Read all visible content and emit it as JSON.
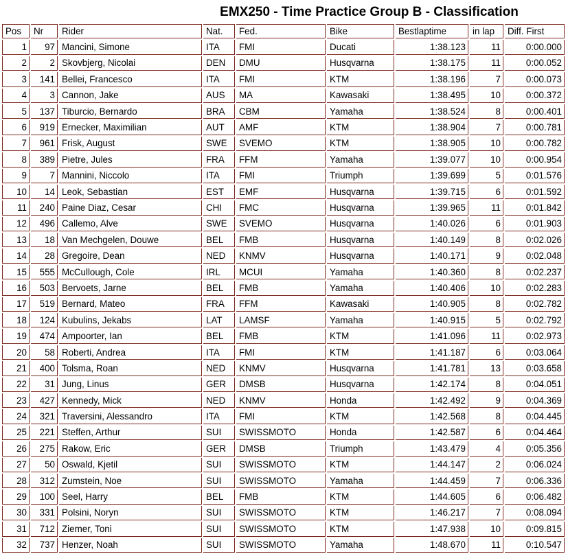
{
  "title": "EMX250 - Time Practice Group B - Classification",
  "table": {
    "columns": [
      "Pos",
      "Nr",
      "Rider",
      "Nat.",
      "Fed.",
      "Bike",
      "Bestlaptime",
      "in lap",
      "Diff. First"
    ],
    "rows": [
      {
        "pos": "1",
        "nr": "97",
        "rider": "Mancini, Simone",
        "nat": "ITA",
        "fed": "FMI",
        "bike": "Ducati",
        "bestlaptime": "1:38.123",
        "in_lap": "11",
        "diff_first": "0:00.000"
      },
      {
        "pos": "2",
        "nr": "2",
        "rider": "Skovbjerg, Nicolai",
        "nat": "DEN",
        "fed": "DMU",
        "bike": "Husqvarna",
        "bestlaptime": "1:38.175",
        "in_lap": "11",
        "diff_first": "0:00.052"
      },
      {
        "pos": "3",
        "nr": "141",
        "rider": "Bellei, Francesco",
        "nat": "ITA",
        "fed": "FMI",
        "bike": "KTM",
        "bestlaptime": "1:38.196",
        "in_lap": "7",
        "diff_first": "0:00.073"
      },
      {
        "pos": "4",
        "nr": "3",
        "rider": "Cannon, Jake",
        "nat": "AUS",
        "fed": "MA",
        "bike": "Kawasaki",
        "bestlaptime": "1:38.495",
        "in_lap": "10",
        "diff_first": "0:00.372"
      },
      {
        "pos": "5",
        "nr": "137",
        "rider": "Tiburcio, Bernardo",
        "nat": "BRA",
        "fed": "CBM",
        "bike": "Yamaha",
        "bestlaptime": "1:38.524",
        "in_lap": "8",
        "diff_first": "0:00.401"
      },
      {
        "pos": "6",
        "nr": "919",
        "rider": "Ernecker, Maximilian",
        "nat": "AUT",
        "fed": "AMF",
        "bike": "KTM",
        "bestlaptime": "1:38.904",
        "in_lap": "7",
        "diff_first": "0:00.781"
      },
      {
        "pos": "7",
        "nr": "961",
        "rider": "Frisk, August",
        "nat": "SWE",
        "fed": "SVEMO",
        "bike": "KTM",
        "bestlaptime": "1:38.905",
        "in_lap": "10",
        "diff_first": "0:00.782"
      },
      {
        "pos": "8",
        "nr": "389",
        "rider": "Pietre, Jules",
        "nat": "FRA",
        "fed": "FFM",
        "bike": "Yamaha",
        "bestlaptime": "1:39.077",
        "in_lap": "10",
        "diff_first": "0:00.954"
      },
      {
        "pos": "9",
        "nr": "7",
        "rider": "Mannini, Niccolo",
        "nat": "ITA",
        "fed": "FMI",
        "bike": "Triumph",
        "bestlaptime": "1:39.699",
        "in_lap": "5",
        "diff_first": "0:01.576"
      },
      {
        "pos": "10",
        "nr": "14",
        "rider": "Leok, Sebastian",
        "nat": "EST",
        "fed": "EMF",
        "bike": "Husqvarna",
        "bestlaptime": "1:39.715",
        "in_lap": "6",
        "diff_first": "0:01.592"
      },
      {
        "pos": "11",
        "nr": "240",
        "rider": "Paine Diaz, Cesar",
        "nat": "CHI",
        "fed": "FMC",
        "bike": "Husqvarna",
        "bestlaptime": "1:39.965",
        "in_lap": "11",
        "diff_first": "0:01.842"
      },
      {
        "pos": "12",
        "nr": "496",
        "rider": "Callemo, Alve",
        "nat": "SWE",
        "fed": "SVEMO",
        "bike": "Husqvarna",
        "bestlaptime": "1:40.026",
        "in_lap": "6",
        "diff_first": "0:01.903"
      },
      {
        "pos": "13",
        "nr": "18",
        "rider": "Van Mechgelen, Douwe",
        "nat": "BEL",
        "fed": "FMB",
        "bike": "Husqvarna",
        "bestlaptime": "1:40.149",
        "in_lap": "8",
        "diff_first": "0:02.026"
      },
      {
        "pos": "14",
        "nr": "28",
        "rider": "Gregoire, Dean",
        "nat": "NED",
        "fed": "KNMV",
        "bike": "Husqvarna",
        "bestlaptime": "1:40.171",
        "in_lap": "9",
        "diff_first": "0:02.048"
      },
      {
        "pos": "15",
        "nr": "555",
        "rider": "McCullough, Cole",
        "nat": "IRL",
        "fed": "MCUI",
        "bike": "Yamaha",
        "bestlaptime": "1:40.360",
        "in_lap": "8",
        "diff_first": "0:02.237"
      },
      {
        "pos": "16",
        "nr": "503",
        "rider": "Bervoets, Jarne",
        "nat": "BEL",
        "fed": "FMB",
        "bike": "Yamaha",
        "bestlaptime": "1:40.406",
        "in_lap": "10",
        "diff_first": "0:02.283"
      },
      {
        "pos": "17",
        "nr": "519",
        "rider": "Bernard, Mateo",
        "nat": "FRA",
        "fed": "FFM",
        "bike": "Kawasaki",
        "bestlaptime": "1:40.905",
        "in_lap": "8",
        "diff_first": "0:02.782"
      },
      {
        "pos": "18",
        "nr": "124",
        "rider": "Kubulins, Jekabs",
        "nat": "LAT",
        "fed": "LAMSF",
        "bike": "Yamaha",
        "bestlaptime": "1:40.915",
        "in_lap": "5",
        "diff_first": "0:02.792"
      },
      {
        "pos": "19",
        "nr": "474",
        "rider": "Ampoorter, Ian",
        "nat": "BEL",
        "fed": "FMB",
        "bike": "KTM",
        "bestlaptime": "1:41.096",
        "in_lap": "11",
        "diff_first": "0:02.973"
      },
      {
        "pos": "20",
        "nr": "58",
        "rider": "Roberti, Andrea",
        "nat": "ITA",
        "fed": "FMI",
        "bike": "KTM",
        "bestlaptime": "1:41.187",
        "in_lap": "6",
        "diff_first": "0:03.064"
      },
      {
        "pos": "21",
        "nr": "400",
        "rider": "Tolsma, Roan",
        "nat": "NED",
        "fed": "KNMV",
        "bike": "Husqvarna",
        "bestlaptime": "1:41.781",
        "in_lap": "13",
        "diff_first": "0:03.658"
      },
      {
        "pos": "22",
        "nr": "31",
        "rider": "Jung, Linus",
        "nat": "GER",
        "fed": "DMSB",
        "bike": "Husqvarna",
        "bestlaptime": "1:42.174",
        "in_lap": "8",
        "diff_first": "0:04.051"
      },
      {
        "pos": "23",
        "nr": "427",
        "rider": "Kennedy, Mick",
        "nat": "NED",
        "fed": "KNMV",
        "bike": "Honda",
        "bestlaptime": "1:42.492",
        "in_lap": "9",
        "diff_first": "0:04.369"
      },
      {
        "pos": "24",
        "nr": "321",
        "rider": "Traversini, Alessandro",
        "nat": "ITA",
        "fed": "FMI",
        "bike": "KTM",
        "bestlaptime": "1:42.568",
        "in_lap": "8",
        "diff_first": "0:04.445"
      },
      {
        "pos": "25",
        "nr": "221",
        "rider": "Steffen, Arthur",
        "nat": "SUI",
        "fed": "SWISSMOTO",
        "bike": "Honda",
        "bestlaptime": "1:42.587",
        "in_lap": "6",
        "diff_first": "0:04.464"
      },
      {
        "pos": "26",
        "nr": "275",
        "rider": "Rakow, Eric",
        "nat": "GER",
        "fed": "DMSB",
        "bike": "Triumph",
        "bestlaptime": "1:43.479",
        "in_lap": "4",
        "diff_first": "0:05.356"
      },
      {
        "pos": "27",
        "nr": "50",
        "rider": "Oswald, Kjetil",
        "nat": "SUI",
        "fed": "SWISSMOTO",
        "bike": "KTM",
        "bestlaptime": "1:44.147",
        "in_lap": "2",
        "diff_first": "0:06.024"
      },
      {
        "pos": "28",
        "nr": "312",
        "rider": "Zumstein, Noe",
        "nat": "SUI",
        "fed": "SWISSMOTO",
        "bike": "Yamaha",
        "bestlaptime": "1:44.459",
        "in_lap": "7",
        "diff_first": "0:06.336"
      },
      {
        "pos": "29",
        "nr": "100",
        "rider": "Seel, Harry",
        "nat": "BEL",
        "fed": "FMB",
        "bike": "KTM",
        "bestlaptime": "1:44.605",
        "in_lap": "6",
        "diff_first": "0:06.482"
      },
      {
        "pos": "30",
        "nr": "331",
        "rider": "Polsini, Noryn",
        "nat": "SUI",
        "fed": "SWISSMOTO",
        "bike": "KTM",
        "bestlaptime": "1:46.217",
        "in_lap": "7",
        "diff_first": "0:08.094"
      },
      {
        "pos": "31",
        "nr": "712",
        "rider": "Ziemer, Toni",
        "nat": "SUI",
        "fed": "SWISSMOTO",
        "bike": "KTM",
        "bestlaptime": "1:47.938",
        "in_lap": "10",
        "diff_first": "0:09.815"
      },
      {
        "pos": "32",
        "nr": "737",
        "rider": "Henzer, Noah",
        "nat": "SUI",
        "fed": "SWISSMOTO",
        "bike": "Yamaha",
        "bestlaptime": "1:48.670",
        "in_lap": "11",
        "diff_first": "0:10.547"
      }
    ]
  },
  "colors": {
    "border": "#7b281c",
    "text": "#000000",
    "background": "#ffffff"
  }
}
